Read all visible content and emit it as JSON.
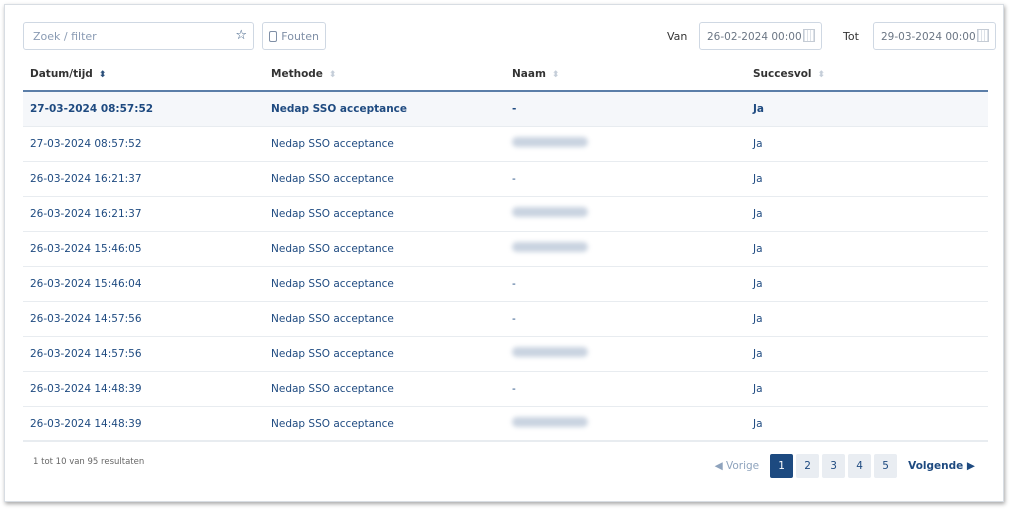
{
  "filter": {
    "placeholder": "Zoek / filter",
    "star_icon": "star-icon",
    "errors_label": "Fouten"
  },
  "dates": {
    "from_label": "Van",
    "from_value": "26-02-2024 00:00",
    "to_label": "Tot",
    "to_value": "29-03-2024 00:00"
  },
  "table": {
    "columns": [
      "Datum/tijd",
      "Methode",
      "Naam",
      "Succesvol"
    ],
    "sorted_column": "Datum/tijd",
    "rows": [
      {
        "datetime": "27-03-2024 08:57:52",
        "method": "Nedap SSO acceptance",
        "name": "-",
        "success": "Ja"
      },
      {
        "datetime": "27-03-2024 08:57:52",
        "method": "Nedap SSO acceptance",
        "name": null,
        "success": "Ja"
      },
      {
        "datetime": "26-03-2024 16:21:37",
        "method": "Nedap SSO acceptance",
        "name": "-",
        "success": "Ja"
      },
      {
        "datetime": "26-03-2024 16:21:37",
        "method": "Nedap SSO acceptance",
        "name": null,
        "success": "Ja"
      },
      {
        "datetime": "26-03-2024 15:46:05",
        "method": "Nedap SSO acceptance",
        "name": null,
        "success": "Ja"
      },
      {
        "datetime": "26-03-2024 15:46:04",
        "method": "Nedap SSO acceptance",
        "name": "-",
        "success": "Ja"
      },
      {
        "datetime": "26-03-2024 14:57:56",
        "method": "Nedap SSO acceptance",
        "name": "-",
        "success": "Ja"
      },
      {
        "datetime": "26-03-2024 14:57:56",
        "method": "Nedap SSO acceptance",
        "name": null,
        "success": "Ja"
      },
      {
        "datetime": "26-03-2024 14:48:39",
        "method": "Nedap SSO acceptance",
        "name": "-",
        "success": "Ja"
      },
      {
        "datetime": "26-03-2024 14:48:39",
        "method": "Nedap SSO acceptance",
        "name": null,
        "success": "Ja"
      }
    ]
  },
  "footer": {
    "count": "1 tot 10 van 95 resultaten",
    "prev": "Vorige",
    "next": "Volgende",
    "pages": [
      "1",
      "2",
      "3",
      "4",
      "5"
    ],
    "current_page": "1"
  }
}
